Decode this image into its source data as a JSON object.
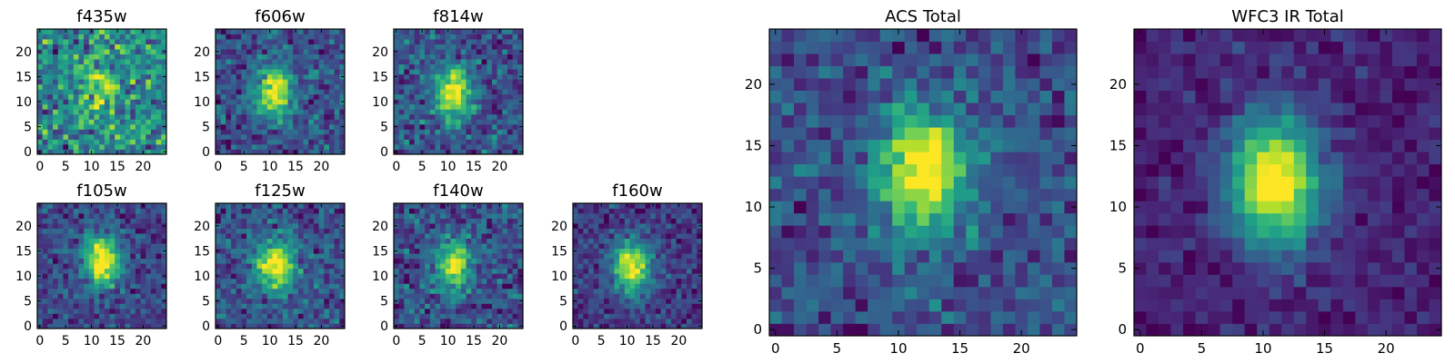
{
  "chart_data": [
    {
      "type": "heatmap",
      "title": "f435w",
      "pixels": 25,
      "xlim": [
        0,
        24
      ],
      "ylim": [
        0,
        24
      ],
      "xticks": [
        0,
        5,
        10,
        15,
        20
      ],
      "yticks": [
        0,
        5,
        10,
        15,
        20
      ],
      "peak": [
        12,
        13
      ],
      "signal": 0.2,
      "noise": 0.55,
      "seed": 11
    },
    {
      "type": "heatmap",
      "title": "f606w",
      "pixels": 25,
      "xlim": [
        0,
        24
      ],
      "ylim": [
        0,
        24
      ],
      "xticks": [
        0,
        5,
        10,
        15,
        20
      ],
      "yticks": [
        0,
        5,
        10,
        15,
        20
      ],
      "peak": [
        11,
        12
      ],
      "signal": 0.55,
      "noise": 0.45,
      "seed": 23
    },
    {
      "type": "heatmap",
      "title": "f814w",
      "pixels": 25,
      "xlim": [
        0,
        24
      ],
      "ylim": [
        0,
        24
      ],
      "xticks": [
        0,
        5,
        10,
        15,
        20
      ],
      "yticks": [
        0,
        5,
        10,
        15,
        20
      ],
      "peak": [
        11,
        12
      ],
      "signal": 0.5,
      "noise": 0.45,
      "seed": 37
    },
    {
      "type": "heatmap",
      "title": "f105w",
      "pixels": 25,
      "xlim": [
        0,
        24
      ],
      "ylim": [
        0,
        24
      ],
      "xticks": [
        0,
        5,
        10,
        15,
        20
      ],
      "yticks": [
        0,
        5,
        10,
        15,
        20
      ],
      "peak": [
        12,
        13
      ],
      "signal": 0.55,
      "noise": 0.35,
      "seed": 41
    },
    {
      "type": "heatmap",
      "title": "f125w",
      "pixels": 25,
      "xlim": [
        0,
        24
      ],
      "ylim": [
        0,
        24
      ],
      "xticks": [
        0,
        5,
        10,
        15,
        20
      ],
      "yticks": [
        0,
        5,
        10,
        15,
        20
      ],
      "peak": [
        11,
        12
      ],
      "signal": 0.5,
      "noise": 0.4,
      "seed": 53
    },
    {
      "type": "heatmap",
      "title": "f140w",
      "pixels": 25,
      "xlim": [
        0,
        24
      ],
      "ylim": [
        0,
        24
      ],
      "xticks": [
        0,
        5,
        10,
        15,
        20
      ],
      "yticks": [
        0,
        5,
        10,
        15,
        20
      ],
      "peak": [
        11,
        12
      ],
      "signal": 0.45,
      "noise": 0.45,
      "seed": 67
    },
    {
      "type": "heatmap",
      "title": "f160w",
      "pixels": 25,
      "xlim": [
        0,
        24
      ],
      "ylim": [
        0,
        24
      ],
      "xticks": [
        0,
        5,
        10,
        15,
        20
      ],
      "yticks": [
        0,
        5,
        10,
        15,
        20
      ],
      "peak": [
        11,
        12
      ],
      "signal": 0.65,
      "noise": 0.4,
      "seed": 79
    },
    {
      "type": "heatmap",
      "title": "ACS Total",
      "pixels": 25,
      "xlim": [
        0,
        24
      ],
      "ylim": [
        0,
        24
      ],
      "xticks": [
        0,
        5,
        10,
        15,
        20
      ],
      "yticks": [
        0,
        5,
        10,
        15,
        20
      ],
      "peak": [
        12,
        13
      ],
      "signal": 0.6,
      "noise": 0.4,
      "seed": 97
    },
    {
      "type": "heatmap",
      "title": "WFC3 IR Total",
      "pixels": 25,
      "xlim": [
        0,
        24
      ],
      "ylim": [
        0,
        24
      ],
      "xticks": [
        0,
        5,
        10,
        15,
        20
      ],
      "yticks": [
        0,
        5,
        10,
        15,
        20
      ],
      "peak": [
        11,
        12
      ],
      "signal": 0.8,
      "noise": 0.25,
      "seed": 113
    }
  ]
}
